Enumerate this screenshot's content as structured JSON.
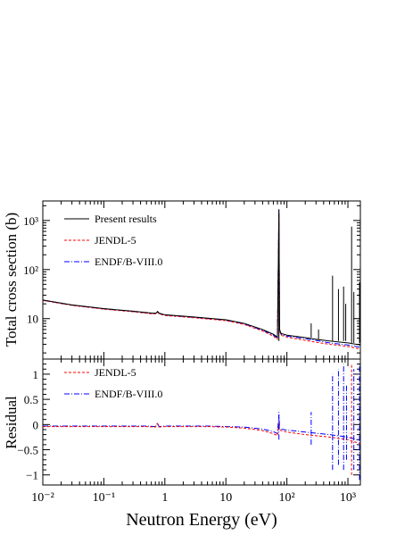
{
  "chart_data": [
    {
      "type": "line",
      "panel": "top",
      "ylabel": "Total cross section (b)",
      "xscale": "log",
      "yscale": "log",
      "xlim": [
        0.01,
        1600
      ],
      "ylim": [
        1.5,
        2500
      ],
      "x_ticks": [
        0.01,
        0.1,
        1,
        10,
        100,
        1000
      ],
      "y_ticks": [
        10,
        100,
        1000
      ],
      "y_tick_labels": [
        "10",
        "10²",
        "10³"
      ],
      "legend": {
        "placement": "top-left",
        "entries": [
          {
            "label": "Present results",
            "style": "solid",
            "color": "#000000"
          },
          {
            "label": "JENDL-5",
            "style": "dashed",
            "color": "#ff0000"
          },
          {
            "label": "ENDF/B-VIII.0",
            "style": "dash-dot",
            "color": "#0000ff"
          }
        ]
      },
      "series": [
        {
          "name": "Present results",
          "color": "#000000",
          "x": [
            0.01,
            0.03,
            0.1,
            0.3,
            0.6,
            0.72,
            0.76,
            0.8,
            0.9,
            1,
            3,
            10,
            20,
            40,
            60,
            70,
            74,
            76,
            80,
            100,
            200,
            300,
            500,
            1000,
            1600
          ],
          "y": [
            24,
            19,
            16,
            14.2,
            13,
            12.9,
            14,
            13,
            12.4,
            12,
            10.8,
            9.5,
            8,
            6,
            4.8,
            4.2,
            1400,
            6,
            5,
            4.6,
            4.1,
            3.8,
            3.5,
            3.2,
            2.9
          ]
        },
        {
          "name": "JENDL-5",
          "color": "#ff0000",
          "x": [
            0.01,
            0.03,
            0.1,
            0.3,
            0.6,
            0.72,
            0.76,
            0.8,
            0.9,
            1,
            3,
            10,
            20,
            40,
            60,
            70,
            74,
            76,
            80,
            100,
            200,
            300,
            500,
            1000,
            1600
          ],
          "y": [
            23.5,
            18.6,
            15.6,
            13.8,
            12.6,
            12.5,
            13.6,
            12.6,
            12,
            11.6,
            10.4,
            9.1,
            7.6,
            5.6,
            4.4,
            3.8,
            1300,
            5.6,
            4.6,
            4.2,
            3.6,
            3.3,
            3,
            2.7,
            2.4
          ]
        },
        {
          "name": "ENDF/B-VIII.0",
          "color": "#0000ff",
          "x": [
            0.01,
            0.03,
            0.1,
            0.3,
            0.6,
            0.72,
            0.76,
            0.8,
            0.9,
            1,
            3,
            10,
            20,
            40,
            60,
            70,
            74,
            76,
            80,
            100,
            200,
            300,
            500,
            1000,
            1600
          ],
          "y": [
            23.7,
            18.8,
            15.8,
            14,
            12.8,
            12.7,
            13.8,
            12.8,
            12.2,
            11.8,
            10.6,
            9.3,
            7.8,
            5.8,
            4.6,
            4,
            1700,
            5.8,
            4.8,
            4.4,
            3.9,
            3.6,
            3.2,
            2.9,
            2.6
          ]
        }
      ],
      "resonances": [
        {
          "x": 74,
          "y": 1700
        },
        {
          "x": 250,
          "y": 8
        },
        {
          "x": 330,
          "y": 6
        },
        {
          "x": 560,
          "y": 75
        },
        {
          "x": 700,
          "y": 40
        },
        {
          "x": 850,
          "y": 45
        },
        {
          "x": 920,
          "y": 20
        },
        {
          "x": 1150,
          "y": 750
        },
        {
          "x": 1250,
          "y": 35
        },
        {
          "x": 1550,
          "y": 55
        }
      ]
    },
    {
      "type": "line",
      "panel": "bottom",
      "xlabel": "Neutron Energy (eV)",
      "ylabel": "Residual",
      "xscale": "log",
      "xlim": [
        0.01,
        1600
      ],
      "ylim": [
        -1.2,
        1.3
      ],
      "x_ticks": [
        0.01,
        0.1,
        1,
        10,
        100,
        1000
      ],
      "x_tick_labels": [
        "10⁻²",
        "10⁻¹",
        "1",
        "10",
        "10²",
        "10³"
      ],
      "y_ticks": [
        -1,
        -0.5,
        0,
        0.5,
        1
      ],
      "y_tick_labels": [
        "−1",
        "−0.5",
        "0",
        "0.5",
        "1"
      ],
      "legend": {
        "placement": "top-left",
        "entries": [
          {
            "label": "JENDL-5",
            "style": "dashed",
            "color": "#ff0000"
          },
          {
            "label": "ENDF/B-VIII.0",
            "style": "dash-dot",
            "color": "#0000ff"
          }
        ]
      },
      "series": [
        {
          "name": "JENDL-5",
          "color": "#ff0000",
          "x": [
            0.01,
            0.1,
            0.5,
            0.7,
            0.76,
            0.8,
            1,
            5,
            10,
            20,
            40,
            60,
            70,
            74,
            76,
            80,
            100,
            200,
            500,
            1000,
            1600
          ],
          "y": [
            -0.04,
            -0.04,
            -0.04,
            -0.05,
            0.02,
            -0.05,
            -0.04,
            -0.04,
            -0.05,
            -0.07,
            -0.12,
            -0.18,
            -0.22,
            0.02,
            -0.1,
            -0.12,
            -0.15,
            -0.2,
            -0.25,
            -0.3,
            -0.38
          ]
        },
        {
          "name": "ENDF/B-VIII.0",
          "color": "#0000ff",
          "x": [
            0.01,
            0.1,
            0.5,
            0.7,
            0.76,
            0.8,
            1,
            5,
            10,
            20,
            40,
            60,
            70,
            74,
            76,
            80,
            100,
            200,
            500,
            1000,
            1600
          ],
          "y": [
            -0.03,
            -0.03,
            -0.03,
            -0.04,
            0.03,
            -0.04,
            -0.03,
            -0.03,
            -0.04,
            -0.05,
            -0.09,
            -0.14,
            -0.18,
            0.2,
            -0.07,
            -0.09,
            -0.11,
            -0.15,
            -0.2,
            -0.25,
            -0.32
          ]
        }
      ],
      "spikes": [
        {
          "x": 74,
          "y0": -0.3,
          "y1": 0.25,
          "color": "#0000ff"
        },
        {
          "x": 250,
          "y0": -0.4,
          "y1": 0.25,
          "color": "#0000ff"
        },
        {
          "x": 560,
          "y0": -0.9,
          "y1": 1.0,
          "color": "#0000ff"
        },
        {
          "x": 700,
          "y0": -0.8,
          "y1": 1.1,
          "color": "#0000ff"
        },
        {
          "x": 850,
          "y0": -0.9,
          "y1": 1.2,
          "color": "#0000ff"
        },
        {
          "x": 950,
          "y0": -0.7,
          "y1": 0.8,
          "color": "#0000ff"
        },
        {
          "x": 1150,
          "y0": -1.0,
          "y1": 1.2,
          "color": "#ff0000"
        },
        {
          "x": 1250,
          "y0": -0.9,
          "y1": 1.1,
          "color": "#0000ff"
        },
        {
          "x": 1550,
          "y0": -1.1,
          "y1": 1.2,
          "color": "#0000ff"
        }
      ]
    }
  ]
}
